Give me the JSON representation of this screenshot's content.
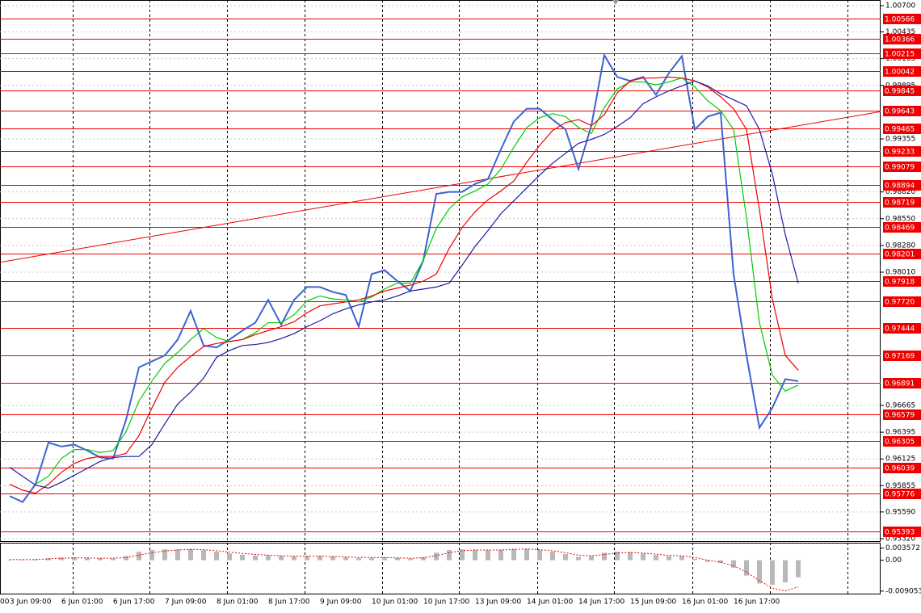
{
  "chart_data": [
    {
      "type": "line",
      "categories": [
        "00",
        "3 Jun 09:00",
        null,
        null,
        null,
        "6 Jun 01:00",
        null,
        null,
        null,
        "6 Jun 17:00",
        null,
        null,
        null,
        "7 Jun 09:00",
        null,
        null,
        null,
        "8 Jun 01:00",
        null,
        null,
        null,
        "8 Jun 17:00",
        null,
        null,
        null,
        "9 Jun 09:00",
        null,
        null,
        null,
        "10 Jun 01:00",
        null,
        null,
        null,
        "10 Jun 17:00",
        null,
        null,
        null,
        "13 Jun 09:00",
        null,
        null,
        null,
        "14 Jun 01:00",
        null,
        null,
        null,
        "14 Jun 17:00",
        null,
        null,
        null,
        "15 Jun 09:00",
        null,
        null,
        null,
        "16 Jun 01:00",
        null,
        null,
        null,
        "16 Jun 17:00",
        null,
        null,
        null,
        null
      ],
      "series": [
        {
          "color": "#3c64d2",
          "values": [
            0.9575,
            0.9569,
            0.9587,
            0.9629,
            0.9625,
            0.9627,
            0.9621,
            0.9614,
            0.9613,
            0.9652,
            0.9705,
            0.9711,
            0.9717,
            0.9733,
            0.9762,
            0.9727,
            0.9725,
            0.9733,
            0.9742,
            0.975,
            0.9773,
            0.9748,
            0.9773,
            0.9786,
            0.9786,
            0.9781,
            0.9778,
            0.9746,
            0.9799,
            0.9803,
            0.9792,
            0.9782,
            0.9813,
            0.988,
            0.9882,
            0.9882,
            0.989,
            0.9895,
            0.9925,
            0.9953,
            0.9966,
            0.9966,
            0.9955,
            0.9945,
            0.9905,
            0.9949,
            1.002,
            0.9998,
            0.9994,
            0.9998,
            0.998,
            1.0002,
            1.0019,
            0.9945,
            0.9958,
            0.9962,
            0.9799,
            0.9717,
            0.9644,
            0.9664,
            0.9693,
            0.9691
          ]
        },
        {
          "color": "#00cc00",
          "values": [
            null,
            null,
            0.9587,
            0.9595,
            0.9613,
            0.9622,
            0.9622,
            0.9619,
            0.9621,
            0.964,
            0.9671,
            0.9691,
            0.9709,
            0.972,
            0.9733,
            0.9744,
            0.9735,
            0.9731,
            0.9733,
            0.974,
            0.975,
            0.975,
            0.9758,
            0.9772,
            0.9777,
            0.9774,
            0.9773,
            0.9771,
            0.9776,
            0.9784,
            0.979,
            0.979,
            0.9813,
            0.9845,
            0.9865,
            0.9877,
            0.9883,
            0.989,
            0.9905,
            0.9927,
            0.9947,
            0.9957,
            0.9961,
            0.9958,
            0.9947,
            0.9941,
            0.9967,
            0.9986,
            0.9993,
            0.9993,
            0.999,
            0.9993,
            0.9997,
            0.9988,
            0.9974,
            0.9964,
            0.9945,
            0.9856,
            0.975,
            0.9697,
            0.9681,
            0.9687
          ]
        },
        {
          "color": "#ee0000",
          "values": [
            0.9587,
            0.9581,
            0.9578,
            0.9587,
            0.9599,
            0.9608,
            0.9613,
            0.9615,
            0.9615,
            0.9618,
            0.9636,
            0.9664,
            0.969,
            0.9705,
            0.9716,
            0.9726,
            0.9729,
            0.9731,
            0.9733,
            0.9738,
            0.9742,
            0.9746,
            0.9751,
            0.976,
            0.9767,
            0.9769,
            0.9771,
            0.9773,
            0.9777,
            0.9782,
            0.9785,
            0.9788,
            0.9792,
            0.9799,
            0.9825,
            0.9846,
            0.9862,
            0.9874,
            0.9883,
            0.9893,
            0.9912,
            0.9929,
            0.9944,
            0.9952,
            0.9955,
            0.9949,
            0.996,
            0.9982,
            0.9994,
            0.9997,
            0.9997,
            0.9998,
            0.9997,
            0.9994,
            0.9988,
            0.9978,
            0.9966,
            0.9945,
            0.9864,
            0.9774,
            0.9717,
            0.9702
          ]
        },
        {
          "color": "#1a1aa8",
          "values": [
            0.9604,
            0.9595,
            0.9586,
            0.9583,
            0.9589,
            0.9596,
            0.9603,
            0.961,
            0.9614,
            0.9615,
            0.9615,
            0.9627,
            0.9648,
            0.9668,
            0.968,
            0.9694,
            0.9715,
            0.9722,
            0.9727,
            0.9728,
            0.973,
            0.9734,
            0.9739,
            0.9746,
            0.9752,
            0.9759,
            0.9764,
            0.9768,
            0.9771,
            0.9773,
            0.9777,
            0.9782,
            0.9784,
            0.9786,
            0.979,
            0.9808,
            0.9827,
            0.9843,
            0.986,
            0.9873,
            0.9886,
            0.9899,
            0.9911,
            0.9921,
            0.9931,
            0.9935,
            0.994,
            0.9948,
            0.9957,
            0.9971,
            0.9978,
            0.9984,
            0.9989,
            0.9994,
            0.9989,
            0.9981,
            0.9975,
            0.9969,
            0.9945,
            0.99,
            0.9839,
            0.979
          ]
        }
      ],
      "ylim": [
        0.9532,
        1.007
      ],
      "yticks": [
        {
          "value": 1.007,
          "label": "1.00700"
        },
        1.00435,
        1.00165,
        0.99895,
        0.99355,
        {
          "value": 0.9882,
          "label": "0.98820"
        },
        {
          "value": 0.9855,
          "label": "0.98550"
        },
        {
          "value": 0.9828,
          "label": "0.98280"
        },
        {
          "value": 0.9801,
          "label": "0.98010"
        },
        0.96665,
        0.96395,
        0.96125,
        0.95855,
        {
          "value": 0.9559,
          "label": "0.95590"
        },
        {
          "value": 0.9532,
          "label": "0.95320"
        }
      ],
      "grid": true,
      "levels": [
        1.00566,
        1.00366,
        1.00215,
        1.00042,
        0.99845,
        0.99643,
        0.99465,
        0.99233,
        0.99079,
        0.98894,
        0.98719,
        0.98469,
        0.98201,
        0.97918,
        {
          "value": 0.9772,
          "label": "0.97720"
        },
        0.97444,
        0.97169,
        0.96891,
        0.96579,
        0.96305,
        0.96039,
        0.95776,
        0.95393
      ],
      "level_color": "#ee0000",
      "trendline": [
        0.9811,
        0.9963
      ]
    },
    {
      "type": "bar",
      "series": [
        {
          "color": "#b8b8b8",
          "values": [
            0.0002,
            0.0002,
            0.0003,
            0.0006,
            0.0008,
            0.0008,
            0.0007,
            0.0006,
            0.0005,
            0.0012,
            0.0025,
            0.003,
            0.0032,
            0.0032,
            0.0033,
            0.003,
            0.0025,
            0.002,
            0.0016,
            0.0014,
            0.0014,
            0.0012,
            0.0011,
            0.0012,
            0.0012,
            0.0011,
            0.0009,
            0.0006,
            0.0007,
            0.0008,
            0.0007,
            0.0005,
            0.0009,
            0.0022,
            0.003,
            0.0032,
            0.0031,
            0.003,
            0.0031,
            0.0033,
            0.0033,
            0.003,
            0.0025,
            0.0018,
            0.001,
            0.0012,
            0.0022,
            0.0025,
            0.0024,
            0.002,
            0.0015,
            0.0012,
            0.0012,
            0.0004,
            -0.0005,
            -0.0008,
            -0.0022,
            -0.0045,
            -0.0068,
            -0.0072,
            -0.0065,
            -0.005
          ]
        },
        {
          "type": "line",
          "color": "#ee0000",
          "values": [
            0.0002,
            0.0002,
            0.0002,
            0.0004,
            0.0006,
            0.0007,
            0.0007,
            0.0006,
            0.0006,
            0.0008,
            0.0015,
            0.0022,
            0.0027,
            0.003,
            0.0032,
            0.0031,
            0.0028,
            0.0024,
            0.002,
            0.0017,
            0.0015,
            0.0013,
            0.0012,
            0.0012,
            0.0012,
            0.0011,
            0.001,
            0.0008,
            0.0008,
            0.0008,
            0.0007,
            0.0006,
            0.0007,
            0.0014,
            0.0022,
            0.0028,
            0.003,
            0.003,
            0.003,
            0.0032,
            0.0033,
            0.0031,
            0.0028,
            0.0022,
            0.0015,
            0.0013,
            0.0017,
            0.0021,
            0.0023,
            0.0021,
            0.0018,
            0.0014,
            0.0013,
            0.0008,
            0,
            -0.0006,
            -0.0016,
            -0.0035,
            -0.006,
            -0.0082,
            -0.009,
            -0.0078
          ]
        }
      ],
      "ylim": [
        -0.0098,
        0.0049
      ],
      "yticks": [
        0.003572,
        {
          "value": 0,
          "label": "0.00"
        },
        -0.009053
      ]
    }
  ]
}
